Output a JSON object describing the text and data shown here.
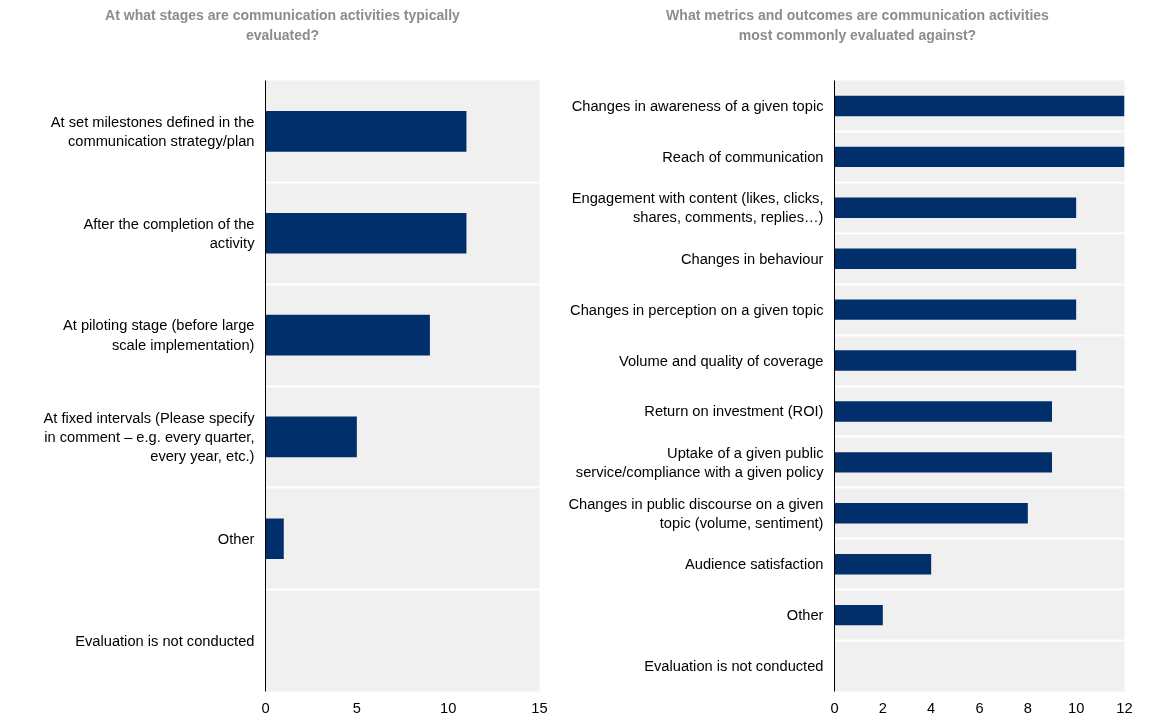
{
  "chart_data": [
    {
      "type": "bar",
      "orientation": "horizontal",
      "title": "At what stages are communication activities typically evaluated?",
      "categories": [
        "At set milestones defined in the communication strategy/plan",
        "After the completion of the activity",
        "At piloting stage (before large scale implementation)",
        "At fixed intervals (Please specify in comment – e.g. every quarter, every year, etc.)",
        "Other",
        "Evaluation is not conducted"
      ],
      "values": [
        11,
        11,
        9,
        5,
        1,
        0
      ],
      "color": "#002f6c",
      "xlim": [
        0,
        15
      ],
      "xticks": [
        0,
        5,
        10,
        15
      ],
      "grid": "y"
    },
    {
      "type": "bar",
      "orientation": "horizontal",
      "title": "What metrics and outcomes are communication activities most commonly evaluated against?",
      "categories": [
        "Changes in awareness of a given topic",
        "Reach of communication",
        "Engagement with content (likes, clicks, shares, comments, replies…)",
        "Changes in behaviour",
        "Changes in perception on a given topic",
        "Volume and quality of coverage",
        "Return on investment (ROI)",
        "Uptake of a given public service/compliance with a given policy",
        "Changes in public discourse on a given topic (volume, sentiment)",
        "Audience satisfaction",
        "Other",
        "Evaluation is not conducted"
      ],
      "values": [
        12,
        12,
        10,
        10,
        10,
        10,
        9,
        9,
        8,
        4,
        2,
        0
      ],
      "color": "#002f6c",
      "xlim": [
        0,
        12
      ],
      "xticks": [
        0,
        2,
        4,
        6,
        8,
        10,
        12
      ],
      "grid": "y"
    }
  ]
}
